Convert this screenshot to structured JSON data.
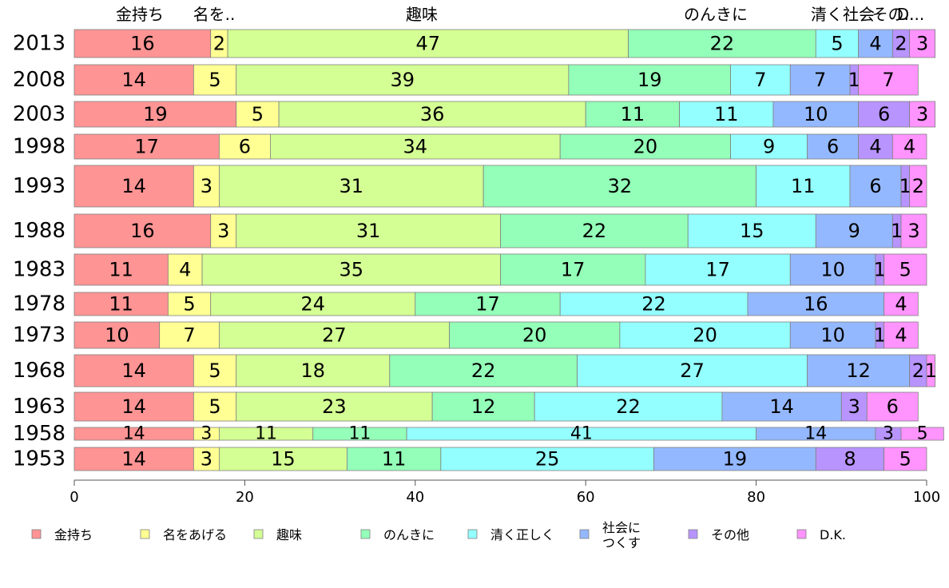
{
  "chart_data": {
    "type": "bar",
    "orientation": "horizontal",
    "stacked": true,
    "categories": [
      "2013",
      "2008",
      "2003",
      "1998",
      "1993",
      "1988",
      "1983",
      "1978",
      "1973",
      "1968",
      "1963",
      "1958",
      "1953"
    ],
    "series": [
      {
        "name": "金持ち",
        "color": "#ff9494",
        "values": [
          16,
          14,
          19,
          17,
          14,
          16,
          11,
          11,
          10,
          14,
          14,
          14,
          14
        ]
      },
      {
        "name": "名をあげる",
        "color": "#ffff94",
        "values": [
          2,
          5,
          5,
          6,
          3,
          3,
          4,
          5,
          7,
          5,
          5,
          3,
          3
        ]
      },
      {
        "name": "趣味",
        "color": "#d4ff94",
        "values": [
          47,
          39,
          36,
          34,
          31,
          31,
          35,
          24,
          27,
          18,
          23,
          11,
          15
        ]
      },
      {
        "name": "のんきに",
        "color": "#94ffb8",
        "values": [
          22,
          19,
          11,
          20,
          32,
          22,
          17,
          17,
          20,
          22,
          12,
          11,
          11
        ]
      },
      {
        "name": "清く正しく",
        "color": "#94ffff",
        "values": [
          5,
          7,
          11,
          9,
          11,
          15,
          17,
          22,
          20,
          27,
          22,
          41,
          25
        ]
      },
      {
        "name": "社会につくす",
        "color": "#94b8ff",
        "values": [
          4,
          7,
          10,
          6,
          6,
          9,
          10,
          16,
          10,
          12,
          14,
          14,
          19
        ]
      },
      {
        "name": "その他",
        "color": "#b894ff",
        "values": [
          2,
          1,
          6,
          4,
          1,
          1,
          1,
          0,
          1,
          2,
          3,
          3,
          8
        ]
      },
      {
        "name": "D.K.",
        "color": "#ff94ff",
        "values": [
          3,
          7,
          3,
          4,
          2,
          3,
          5,
          4,
          4,
          1,
          6,
          5,
          5
        ]
      }
    ],
    "top_labels": [
      "金持ち",
      "名を..",
      "趣味",
      "のんきに",
      "清く社会",
      "その..",
      "D..."
    ],
    "legend_labels": [
      "金持ち",
      "名をあげる",
      "趣味",
      "のんきに",
      "清く正しく",
      "社会に\nつくす",
      "その他",
      "D.K."
    ],
    "xlim": [
      0,
      100
    ],
    "x_ticks": [
      "0",
      "20",
      "40",
      "60",
      "80",
      "100"
    ],
    "legend_position": "bottom",
    "grid": false
  }
}
